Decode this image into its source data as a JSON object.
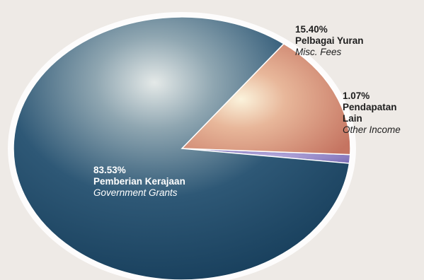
{
  "chart_data": {
    "type": "pie",
    "slices": [
      {
        "percent_label": "83.53%",
        "label_ms": "Pemberian Kerajaan",
        "label_en": "Government Grants",
        "value": 83.53,
        "color": "#1f4a66"
      },
      {
        "percent_label": "15.40%",
        "label_ms": "Pelbagai Yuran",
        "label_en": "Misc. Fees",
        "value": 15.4,
        "color": "#c97e6a"
      },
      {
        "percent_label": "1.07%",
        "label_ms": "Pendapatan Lain",
        "label_en": "Other Income",
        "value": 1.07,
        "color": "#8d80c4"
      }
    ]
  }
}
